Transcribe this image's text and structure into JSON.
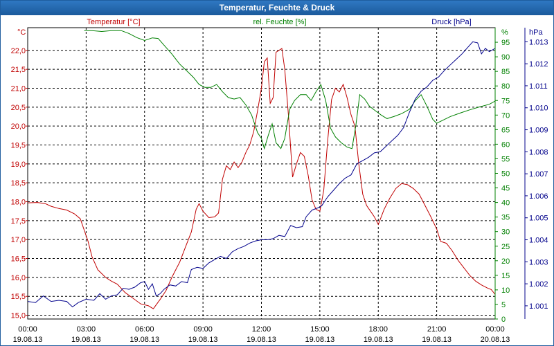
{
  "window": {
    "title": "Temperatur, Feuchte & Druck"
  },
  "colors": {
    "temp": "#c00000",
    "hum": "#008000",
    "press": "#00008b",
    "grid": "#000000",
    "title_bg": "#1f6db4"
  },
  "chart_data": {
    "type": "line",
    "title": "Temperatur, Feuchte & Druck",
    "x_labels": [
      {
        "time": "00:00",
        "date": "19.08.13"
      },
      {
        "time": "03:00",
        "date": "19.08.13"
      },
      {
        "time": "06:00",
        "date": "19.08.13"
      },
      {
        "time": "09:00",
        "date": "19.08.13"
      },
      {
        "time": "12:00",
        "date": "19.08.13"
      },
      {
        "time": "15:00",
        "date": "19.08.13"
      },
      {
        "time": "18:00",
        "date": "19.08.13"
      },
      {
        "time": "21:00",
        "date": "19.08.13"
      },
      {
        "time": "00:00",
        "date": "20.08.13"
      }
    ],
    "xlim": [
      0,
      24
    ],
    "axes": {
      "temp": {
        "label": "Temperatur [°C]",
        "unit": "°C",
        "ylim": [
          14.9,
          22.6
        ],
        "ticks": [
          "15,0",
          "15,5",
          "16,0",
          "16,5",
          "17,0",
          "17,5",
          "18,0",
          "18,5",
          "19,0",
          "19,5",
          "20,0",
          "20,5",
          "21,0",
          "21,5",
          "22,0"
        ],
        "tick_values": [
          15,
          15.5,
          16,
          16.5,
          17,
          17.5,
          18,
          18.5,
          19,
          19.5,
          20,
          20.5,
          21,
          21.5,
          22
        ]
      },
      "hum": {
        "label": "rel. Feuchte [%]",
        "unit": "%",
        "ylim": [
          0,
          100
        ],
        "ticks": [
          "0",
          "5",
          "10",
          "15",
          "20",
          "25",
          "30",
          "35",
          "40",
          "45",
          "50",
          "55",
          "60",
          "65",
          "70",
          "75",
          "80",
          "85",
          "90",
          "95"
        ],
        "tick_values": [
          0,
          5,
          10,
          15,
          20,
          25,
          30,
          35,
          40,
          45,
          50,
          55,
          60,
          65,
          70,
          75,
          80,
          85,
          90,
          95
        ]
      },
      "press": {
        "label": "Druck [hPa]",
        "unit": "hPa",
        "ylim": [
          1000.4,
          1013.64
        ],
        "ticks": [
          "1.001",
          "1.002",
          "1.003",
          "1.004",
          "1.005",
          "1.006",
          "1.007",
          "1.008",
          "1.009",
          "1.010",
          "1.011",
          "1.012",
          "1.013"
        ],
        "tick_values": [
          1001,
          1002,
          1003,
          1004,
          1005,
          1006,
          1007,
          1008,
          1009,
          1010,
          1011,
          1012,
          1013
        ]
      }
    },
    "series": [
      {
        "name": "Temperatur [°C]",
        "axis": "temp",
        "color": "#c00000",
        "points": [
          [
            0,
            17.97
          ],
          [
            0.5,
            17.98
          ],
          [
            0.9,
            17.95
          ],
          [
            1.2,
            17.88
          ],
          [
            1.6,
            17.82
          ],
          [
            2.0,
            17.78
          ],
          [
            2.4,
            17.68
          ],
          [
            2.7,
            17.55
          ],
          [
            2.9,
            17.25
          ],
          [
            3.1,
            16.95
          ],
          [
            3.3,
            16.55
          ],
          [
            3.6,
            16.2
          ],
          [
            4.0,
            16.0
          ],
          [
            4.3,
            15.9
          ],
          [
            4.6,
            15.82
          ],
          [
            5.0,
            15.6
          ],
          [
            5.4,
            15.45
          ],
          [
            5.8,
            15.3
          ],
          [
            6.2,
            15.25
          ],
          [
            6.45,
            15.17
          ],
          [
            6.8,
            15.42
          ],
          [
            7.1,
            15.65
          ],
          [
            7.4,
            16.0
          ],
          [
            7.8,
            16.4
          ],
          [
            8.1,
            16.8
          ],
          [
            8.4,
            17.2
          ],
          [
            8.65,
            17.8
          ],
          [
            8.8,
            17.95
          ],
          [
            9.0,
            17.75
          ],
          [
            9.3,
            17.58
          ],
          [
            9.6,
            17.6
          ],
          [
            9.8,
            17.7
          ],
          [
            10.0,
            18.6
          ],
          [
            10.2,
            18.95
          ],
          [
            10.4,
            18.85
          ],
          [
            10.6,
            19.05
          ],
          [
            10.8,
            18.9
          ],
          [
            11.0,
            19.05
          ],
          [
            11.2,
            19.3
          ],
          [
            11.4,
            19.5
          ],
          [
            11.6,
            19.85
          ],
          [
            11.8,
            20.4
          ],
          [
            12.0,
            21.0
          ],
          [
            12.15,
            21.7
          ],
          [
            12.3,
            21.8
          ],
          [
            12.45,
            20.6
          ],
          [
            12.6,
            20.75
          ],
          [
            12.75,
            21.95
          ],
          [
            12.9,
            22.0
          ],
          [
            13.05,
            22.05
          ],
          [
            13.2,
            21.5
          ],
          [
            13.4,
            20.2
          ],
          [
            13.6,
            18.65
          ],
          [
            13.8,
            19.0
          ],
          [
            14.0,
            19.3
          ],
          [
            14.2,
            19.2
          ],
          [
            14.4,
            18.7
          ],
          [
            14.6,
            18.05
          ],
          [
            14.8,
            17.8
          ],
          [
            15.0,
            17.75
          ],
          [
            15.2,
            18.3
          ],
          [
            15.4,
            19.6
          ],
          [
            15.6,
            20.7
          ],
          [
            15.8,
            21.0
          ],
          [
            16.0,
            20.9
          ],
          [
            16.2,
            21.1
          ],
          [
            16.4,
            20.75
          ],
          [
            16.6,
            20.3
          ],
          [
            16.8,
            20.0
          ],
          [
            17.0,
            19.0
          ],
          [
            17.2,
            18.2
          ],
          [
            17.4,
            17.9
          ],
          [
            17.6,
            17.75
          ],
          [
            17.8,
            17.6
          ],
          [
            18.0,
            17.4
          ],
          [
            18.3,
            17.8
          ],
          [
            18.6,
            18.1
          ],
          [
            18.9,
            18.35
          ],
          [
            19.2,
            18.48
          ],
          [
            19.5,
            18.45
          ],
          [
            19.8,
            18.35
          ],
          [
            20.1,
            18.2
          ],
          [
            20.4,
            17.9
          ],
          [
            20.7,
            17.6
          ],
          [
            21.0,
            17.28
          ],
          [
            21.2,
            16.95
          ],
          [
            21.5,
            16.9
          ],
          [
            21.8,
            16.7
          ],
          [
            22.1,
            16.45
          ],
          [
            22.4,
            16.25
          ],
          [
            22.7,
            16.05
          ],
          [
            23.0,
            15.9
          ],
          [
            23.3,
            15.8
          ],
          [
            23.6,
            15.72
          ],
          [
            23.8,
            15.68
          ],
          [
            24.0,
            15.55
          ]
        ]
      },
      {
        "name": "rel. Feuchte [%]",
        "axis": "hum",
        "color": "#008000",
        "points": [
          [
            2.9,
            99.0
          ],
          [
            3.3,
            99.0
          ],
          [
            3.8,
            98.7
          ],
          [
            4.3,
            99.0
          ],
          [
            4.8,
            99.0
          ],
          [
            5.2,
            98.0
          ],
          [
            5.6,
            96.6
          ],
          [
            6.0,
            95.6
          ],
          [
            6.4,
            96.5
          ],
          [
            6.7,
            96.3
          ],
          [
            7.0,
            94.0
          ],
          [
            7.4,
            91.0
          ],
          [
            7.8,
            87.5
          ],
          [
            8.2,
            85.0
          ],
          [
            8.5,
            83.0
          ],
          [
            8.8,
            80.5
          ],
          [
            9.1,
            79.5
          ],
          [
            9.4,
            79.5
          ],
          [
            9.7,
            80.5
          ],
          [
            10.0,
            78.0
          ],
          [
            10.3,
            76.0
          ],
          [
            10.6,
            75.5
          ],
          [
            10.9,
            76.0
          ],
          [
            11.2,
            73.5
          ],
          [
            11.5,
            70.0
          ],
          [
            11.8,
            64.0
          ],
          [
            12.0,
            62.0
          ],
          [
            12.15,
            58.5
          ],
          [
            12.35,
            63.0
          ],
          [
            12.55,
            67.0
          ],
          [
            12.75,
            60.5
          ],
          [
            13.0,
            58.5
          ],
          [
            13.2,
            62.0
          ],
          [
            13.45,
            72.0
          ],
          [
            13.7,
            75.0
          ],
          [
            14.0,
            77.0
          ],
          [
            14.3,
            77.0
          ],
          [
            14.55,
            75.0
          ],
          [
            14.8,
            78.0
          ],
          [
            15.05,
            80.5
          ],
          [
            15.3,
            75.0
          ],
          [
            15.55,
            65.5
          ],
          [
            15.8,
            62.5
          ],
          [
            16.1,
            60.5
          ],
          [
            16.4,
            59.0
          ],
          [
            16.65,
            58.5
          ],
          [
            16.85,
            66.5
          ],
          [
            17.05,
            77.0
          ],
          [
            17.3,
            75.5
          ],
          [
            17.55,
            73.0
          ],
          [
            17.85,
            71.5
          ],
          [
            18.15,
            70.0
          ],
          [
            18.45,
            68.8
          ],
          [
            18.8,
            69.5
          ],
          [
            19.2,
            70.5
          ],
          [
            19.6,
            72.0
          ],
          [
            19.9,
            75.0
          ],
          [
            20.2,
            77.0
          ],
          [
            20.5,
            73.0
          ],
          [
            20.8,
            68.5
          ],
          [
            21.0,
            67.2
          ],
          [
            21.3,
            68.2
          ],
          [
            21.7,
            69.5
          ],
          [
            22.2,
            70.7
          ],
          [
            22.7,
            71.8
          ],
          [
            23.2,
            72.8
          ],
          [
            23.7,
            73.7
          ],
          [
            24.0,
            74.8
          ]
        ]
      },
      {
        "name": "Druck [hPa]",
        "axis": "press",
        "color": "#00008b",
        "points": [
          [
            0,
            1001.2
          ],
          [
            0.4,
            1001.15
          ],
          [
            0.8,
            1001.45
          ],
          [
            1.2,
            1001.2
          ],
          [
            1.6,
            1001.25
          ],
          [
            2.0,
            1001.2
          ],
          [
            2.3,
            1000.95
          ],
          [
            2.6,
            1001.15
          ],
          [
            3.0,
            1001.3
          ],
          [
            3.4,
            1001.25
          ],
          [
            3.7,
            1001.55
          ],
          [
            4.0,
            1001.3
          ],
          [
            4.3,
            1001.45
          ],
          [
            4.6,
            1001.5
          ],
          [
            4.9,
            1001.8
          ],
          [
            5.2,
            1001.75
          ],
          [
            5.5,
            1001.85
          ],
          [
            5.8,
            1002.05
          ],
          [
            6.0,
            1002.1
          ],
          [
            6.2,
            1001.75
          ],
          [
            6.4,
            1002.0
          ],
          [
            6.6,
            1001.45
          ],
          [
            6.8,
            1001.55
          ],
          [
            7.0,
            1001.75
          ],
          [
            7.3,
            1001.95
          ],
          [
            7.6,
            1001.9
          ],
          [
            7.9,
            1002.1
          ],
          [
            8.2,
            1002.05
          ],
          [
            8.4,
            1002.65
          ],
          [
            8.7,
            1002.75
          ],
          [
            9.0,
            1002.7
          ],
          [
            9.3,
            1002.95
          ],
          [
            9.6,
            1003.1
          ],
          [
            9.9,
            1003.25
          ],
          [
            10.2,
            1003.15
          ],
          [
            10.5,
            1003.45
          ],
          [
            10.8,
            1003.6
          ],
          [
            11.1,
            1003.7
          ],
          [
            11.4,
            1003.85
          ],
          [
            11.7,
            1003.95
          ],
          [
            12.0,
            1004.0
          ],
          [
            12.3,
            1004.0
          ],
          [
            12.6,
            1004.05
          ],
          [
            12.9,
            1004.2
          ],
          [
            13.2,
            1004.15
          ],
          [
            13.5,
            1004.65
          ],
          [
            13.8,
            1004.55
          ],
          [
            14.1,
            1004.6
          ],
          [
            14.3,
            1005.05
          ],
          [
            14.6,
            1005.35
          ],
          [
            14.9,
            1005.45
          ],
          [
            15.1,
            1005.55
          ],
          [
            15.4,
            1005.95
          ],
          [
            15.7,
            1006.25
          ],
          [
            16.0,
            1006.55
          ],
          [
            16.3,
            1006.8
          ],
          [
            16.6,
            1006.95
          ],
          [
            16.9,
            1007.45
          ],
          [
            17.2,
            1007.6
          ],
          [
            17.5,
            1007.75
          ],
          [
            17.8,
            1007.95
          ],
          [
            18.1,
            1008.0
          ],
          [
            18.4,
            1008.25
          ],
          [
            18.7,
            1008.5
          ],
          [
            19.0,
            1008.75
          ],
          [
            19.3,
            1009.1
          ],
          [
            19.6,
            1009.8
          ],
          [
            19.9,
            1010.4
          ],
          [
            20.2,
            1010.75
          ],
          [
            20.5,
            1010.95
          ],
          [
            20.8,
            1011.25
          ],
          [
            21.1,
            1011.4
          ],
          [
            21.4,
            1011.7
          ],
          [
            21.7,
            1011.95
          ],
          [
            22.0,
            1012.2
          ],
          [
            22.3,
            1012.45
          ],
          [
            22.6,
            1012.75
          ],
          [
            22.85,
            1013.0
          ],
          [
            23.1,
            1012.95
          ],
          [
            23.3,
            1012.45
          ],
          [
            23.5,
            1012.7
          ],
          [
            23.7,
            1012.55
          ],
          [
            24.0,
            1012.7
          ]
        ]
      }
    ]
  }
}
